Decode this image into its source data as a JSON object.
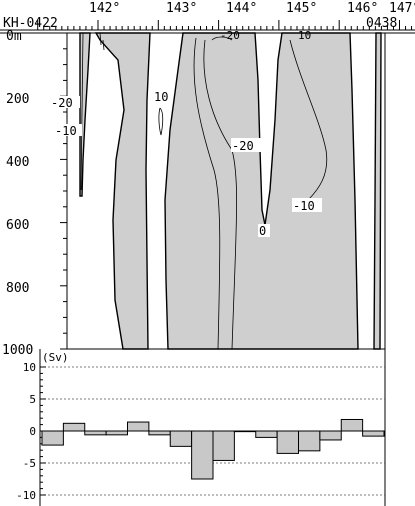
{
  "section": {
    "start_station": "KH-0422",
    "end_station": "0438",
    "lon_ticks": [
      "142°",
      "143°",
      "144°",
      "145°",
      "146°",
      "147°"
    ],
    "depth_top_label": "0m",
    "depth_ticks": [
      "200",
      "400",
      "600",
      "800",
      "1000"
    ],
    "contour_labels": [
      "-20",
      "-10",
      "10",
      "-20",
      "-20",
      "0",
      "-10",
      "10"
    ]
  },
  "chart_data": {
    "type": "bar",
    "unit_label": "(Sv)",
    "ytick_labels": [
      "10",
      "5",
      "0",
      "-5",
      "-10"
    ],
    "ylim": [
      -10,
      10
    ],
    "grid": true,
    "values": [
      -2.2,
      1.2,
      -0.6,
      -0.6,
      1.4,
      -0.6,
      -2.4,
      -7.5,
      -4.6,
      -0.1,
      -1.0,
      -3.5,
      -3.1,
      -1.4,
      1.8,
      -0.8
    ]
  }
}
